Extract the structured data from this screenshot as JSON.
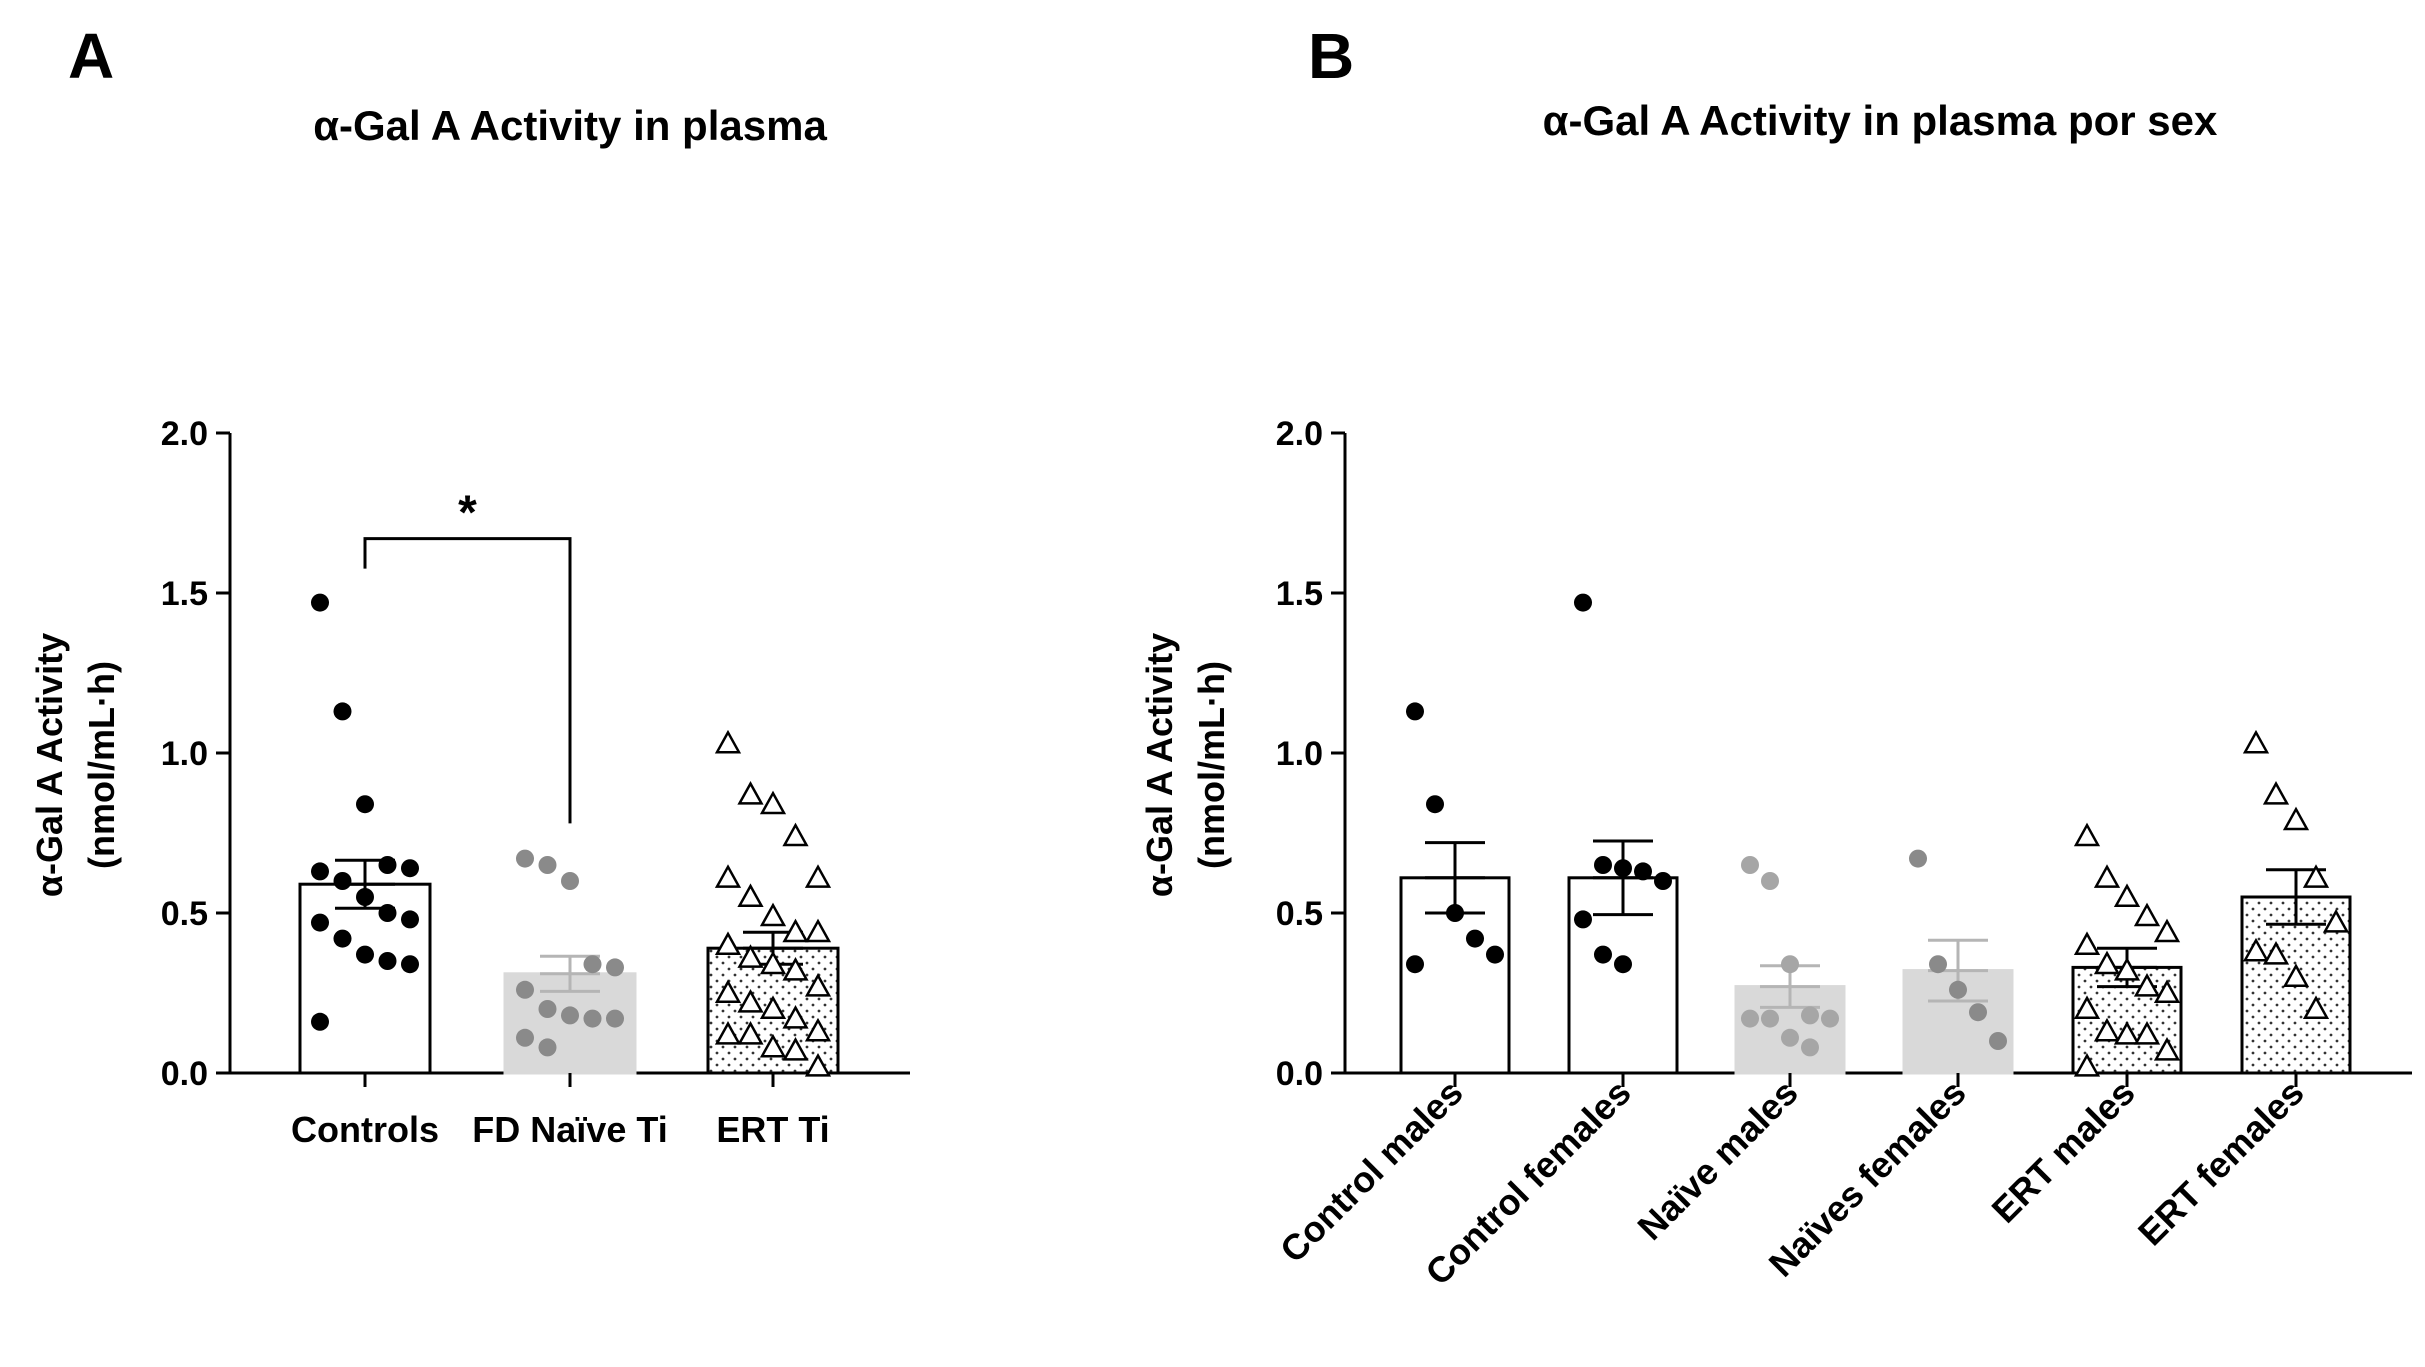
{
  "chart_data": [
    {
      "panel": "A",
      "type": "bar",
      "title": "α-Gal A Activity in plasma",
      "ylabel_line1": "α-Gal A Activity",
      "ylabel_line2": "(nmol/mL·h)",
      "ylim": [
        0,
        2.0
      ],
      "yticks": [
        "0.0",
        "0.5",
        "1.0",
        "1.5",
        "2.0"
      ],
      "categories": [
        "Controls",
        "FD Naïve Ti",
        "ERT Ti"
      ],
      "bars": [
        {
          "name": "Controls",
          "mean": 0.59,
          "sem": 0.075,
          "fill": "#ffffff",
          "pattern": "none",
          "marker": "circle",
          "marker_color": "#000000",
          "points": [
            1.47,
            1.13,
            0.84,
            0.65,
            0.64,
            0.63,
            0.6,
            0.55,
            0.5,
            0.48,
            0.47,
            0.42,
            0.37,
            0.35,
            0.34,
            0.16
          ]
        },
        {
          "name": "FD Naïve Ti",
          "mean": 0.31,
          "sem": 0.055,
          "fill": "#d9d9d9",
          "pattern": "none",
          "marker": "circle",
          "marker_color": "#8a8a8a",
          "points": [
            0.67,
            0.65,
            0.6,
            0.34,
            0.33,
            0.26,
            0.2,
            0.18,
            0.17,
            0.17,
            0.11,
            0.08
          ]
        },
        {
          "name": "ERT Ti",
          "mean": 0.39,
          "sem": 0.05,
          "fill": "#ffffff",
          "pattern": "dots",
          "marker": "triangle",
          "marker_color": "#000000",
          "points": [
            1.03,
            0.87,
            0.84,
            0.74,
            0.61,
            0.61,
            0.55,
            0.49,
            0.44,
            0.44,
            0.4,
            0.36,
            0.34,
            0.32,
            0.27,
            0.25,
            0.22,
            0.2,
            0.17,
            0.13,
            0.12,
            0.12,
            0.08,
            0.07,
            0.02
          ]
        }
      ],
      "significance": {
        "from": 0,
        "to": 1,
        "label": "*",
        "y": 1.67
      }
    },
    {
      "panel": "B",
      "type": "bar",
      "title": "α-Gal A Activity in plasma por sex",
      "ylabel_line1": "α-Gal A Activity",
      "ylabel_line2": "(nmol/mL·h)",
      "ylim": [
        0,
        2.0
      ],
      "yticks": [
        "0.0",
        "0.5",
        "1.0",
        "1.5",
        "2.0"
      ],
      "categories": [
        "Control males",
        "Control females",
        "Naïve males",
        "Naïves females",
        "ERT males",
        "ERT females"
      ],
      "bars": [
        {
          "name": "Control males",
          "mean": 0.61,
          "sem": 0.11,
          "fill": "#ffffff",
          "pattern": "none",
          "marker": "circle",
          "marker_color": "#000000",
          "points": [
            1.13,
            0.84,
            0.5,
            0.42,
            0.37,
            0.34
          ]
        },
        {
          "name": "Control females",
          "mean": 0.61,
          "sem": 0.115,
          "fill": "#ffffff",
          "pattern": "none",
          "marker": "circle",
          "marker_color": "#000000",
          "points": [
            1.47,
            0.65,
            0.64,
            0.63,
            0.6,
            0.48,
            0.37,
            0.34
          ]
        },
        {
          "name": "Naïve males",
          "mean": 0.27,
          "sem": 0.065,
          "fill": "#d9d9d9",
          "pattern": "none",
          "marker": "circle",
          "marker_color": "#a6a6a6",
          "points": [
            0.65,
            0.6,
            0.34,
            0.18,
            0.17,
            0.17,
            0.17,
            0.11,
            0.08
          ]
        },
        {
          "name": "Naïves females",
          "mean": 0.32,
          "sem": 0.095,
          "fill": "#d9d9d9",
          "pattern": "none",
          "marker": "circle",
          "marker_color": "#8a8a8a",
          "points": [
            0.67,
            0.34,
            0.26,
            0.19,
            0.1
          ]
        },
        {
          "name": "ERT males",
          "mean": 0.33,
          "sem": 0.06,
          "fill": "#ffffff",
          "pattern": "dots",
          "marker": "triangle",
          "marker_color": "#000000",
          "points": [
            0.74,
            0.61,
            0.55,
            0.49,
            0.44,
            0.4,
            0.34,
            0.32,
            0.27,
            0.25,
            0.2,
            0.13,
            0.12,
            0.12,
            0.07,
            0.02
          ]
        },
        {
          "name": "ERT females",
          "mean": 0.55,
          "sem": 0.085,
          "fill": "#ffffff",
          "pattern": "dots",
          "marker": "triangle",
          "marker_color": "#000000",
          "points": [
            1.03,
            0.87,
            0.79,
            0.61,
            0.47,
            0.38,
            0.37,
            0.3,
            0.2
          ]
        }
      ]
    }
  ]
}
